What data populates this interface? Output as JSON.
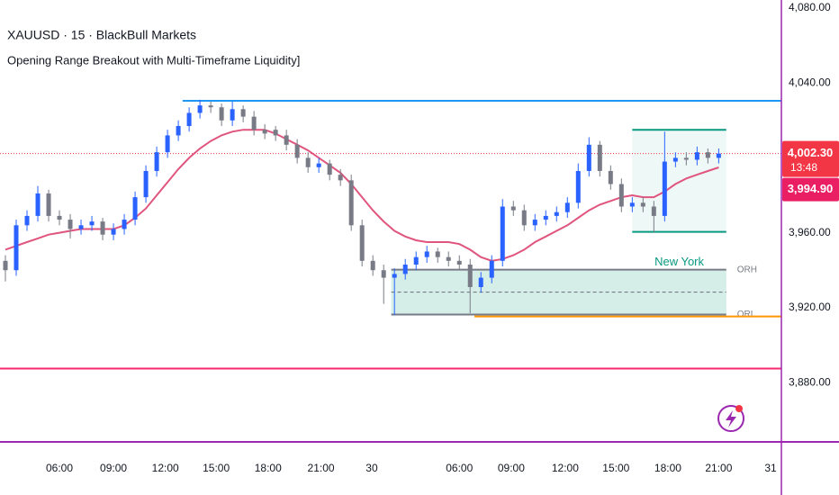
{
  "chart_data": {
    "type": "candlestick",
    "title": "XAUUSD · 15 · BlackBull Markets",
    "subtitle": "Opening Range Breakout with Multi-Timeframe Liquidity]",
    "up_color": "#2962ff",
    "down_color": "#787b86",
    "x": [
      0,
      1,
      2,
      3,
      4,
      5,
      6,
      7,
      8,
      9,
      10,
      11,
      12,
      13,
      14,
      15,
      16,
      17,
      18,
      19,
      20,
      21,
      22,
      23,
      24,
      25,
      26,
      27,
      28,
      29,
      30,
      31,
      32,
      33,
      34,
      35,
      36,
      37,
      38,
      39,
      40,
      41,
      42,
      43,
      44,
      45,
      46,
      47,
      48,
      49,
      50,
      51,
      52,
      53,
      54,
      55,
      56,
      57,
      58,
      59,
      60,
      61,
      62,
      63,
      64,
      65,
      66
    ],
    "open": [
      3945,
      3940,
      3964,
      3969,
      3981,
      3969,
      3967,
      3962,
      3964,
      3966,
      3959,
      3962,
      3967,
      3979,
      3993,
      4003,
      4012,
      4017,
      4024,
      4028,
      4027,
      4020,
      4026,
      4022,
      4015,
      4015,
      4012,
      4007,
      4000,
      3995,
      3997,
      3991,
      3988,
      3964,
      3945,
      3940,
      3936,
      3938,
      3943,
      3947,
      3950,
      3947,
      3945,
      3943,
      3931,
      3936,
      3945,
      3974,
      3972,
      3964,
      3967,
      3969,
      3971,
      3976,
      3993,
      4007,
      3993,
      3986,
      3974,
      3976,
      3974,
      3969,
      3998,
      4000,
      3999,
      4003,
      4000
    ],
    "high": [
      3948,
      3967,
      3972,
      3985,
      3983,
      3972,
      3970,
      3967,
      3969,
      3968,
      3965,
      3970,
      3982,
      3996,
      4006,
      4015,
      4020,
      4027,
      4031,
      4030,
      4029,
      4030,
      4028,
      4025,
      4018,
      4017,
      4015,
      4010,
      4003,
      4000,
      3999,
      3994,
      3991,
      3967,
      3948,
      3943,
      3941,
      3946,
      3950,
      3953,
      3952,
      3950,
      3948,
      3946,
      3939,
      3948,
      3978,
      3977,
      3975,
      3970,
      3972,
      3974,
      3979,
      3997,
      4011,
      4009,
      3996,
      3989,
      3979,
      3979,
      3977,
      4014,
      4003,
      4003,
      4006,
      4005,
      4005
    ],
    "low": [
      3934,
      3937,
      3961,
      3966,
      3966,
      3964,
      3957,
      3959,
      3961,
      3956,
      3956,
      3959,
      3964,
      3976,
      3990,
      4000,
      4009,
      4014,
      4021,
      4024,
      4017,
      4017,
      4019,
      4012,
      4010,
      4009,
      4004,
      3997,
      3992,
      3992,
      3988,
      3985,
      3961,
      3942,
      3937,
      3922,
      3916,
      3935,
      3940,
      3944,
      3944,
      3942,
      3940,
      3917,
      3928,
      3933,
      3942,
      3969,
      3961,
      3961,
      3964,
      3966,
      3968,
      3973,
      3990,
      3990,
      3983,
      3971,
      3971,
      3971,
      3960,
      3966,
      3995,
      3996,
      3996,
      3997,
      3997
    ],
    "close": [
      3940,
      3964,
      3969,
      3981,
      3969,
      3967,
      3962,
      3964,
      3966,
      3959,
      3962,
      3967,
      3979,
      3993,
      4003,
      4012,
      4017,
      4024,
      4028,
      4027,
      4020,
      4026,
      4022,
      4015,
      4013,
      4012,
      4007,
      4000,
      3995,
      3997,
      3991,
      3988,
      3964,
      3945,
      3940,
      3936,
      3938,
      3943,
      3947,
      3950,
      3947,
      3945,
      3943,
      3931,
      3936,
      3945,
      3974,
      3972,
      3964,
      3967,
      3969,
      3971,
      3976,
      3993,
      4007,
      3993,
      3986,
      3974,
      3976,
      3974,
      3969,
      3998,
      4000,
      3999,
      4003,
      4000,
      4002.3
    ],
    "ma": {
      "color": "#e0557e",
      "values": [
        3951,
        3953,
        3955,
        3957,
        3959,
        3960,
        3961,
        3962,
        3962,
        3962,
        3962,
        3964,
        3968,
        3973,
        3980,
        3987,
        3994,
        4000,
        4005,
        4009,
        4012,
        4014,
        4015,
        4015,
        4015,
        4013,
        4010,
        4007,
        4004,
        4000,
        3996,
        3992,
        3986,
        3979,
        3972,
        3966,
        3961,
        3958,
        3956,
        3955,
        3955,
        3955,
        3954,
        3951,
        3947,
        3945,
        3946,
        3948,
        3951,
        3955,
        3958,
        3961,
        3964,
        3968,
        3972,
        3975,
        3977,
        3979,
        3980,
        3979,
        3979,
        3982,
        3986,
        3989,
        3991,
        3993,
        3994.9
      ]
    },
    "xlim": [
      -0.5,
      71.8
    ],
    "xticks": [
      {
        "value": 5,
        "label": "06:00"
      },
      {
        "value": 10,
        "label": "09:00"
      },
      {
        "value": 14.8,
        "label": "12:00"
      },
      {
        "value": 19.5,
        "label": "15:00"
      },
      {
        "value": 24.3,
        "label": "18:00"
      },
      {
        "value": 29.2,
        "label": "21:00"
      },
      {
        "value": 33.9,
        "label": "30"
      },
      {
        "value": 42,
        "label": "06:00"
      },
      {
        "value": 46.8,
        "label": "09:00"
      },
      {
        "value": 51.8,
        "label": "12:00"
      },
      {
        "value": 56.5,
        "label": "15:00"
      },
      {
        "value": 61.3,
        "label": "18:00"
      },
      {
        "value": 66,
        "label": "21:00"
      },
      {
        "value": 70.8,
        "label": "31"
      }
    ],
    "ylim": [
      3848.8,
      4084.3
    ],
    "yticks": [
      {
        "value": 4080,
        "label": "4,080.00"
      },
      {
        "value": 4040,
        "label": "4,040.00"
      },
      {
        "value": 3960,
        "label": "3,960.00"
      },
      {
        "value": 3920,
        "label": "3,920.00"
      },
      {
        "value": 3880,
        "label": "3,880.00"
      }
    ],
    "levels": [
      {
        "value": 4030.5,
        "color": "#2196f3",
        "x_from": 16.4
      },
      {
        "value": 3887.5,
        "color": "#f7296e"
      },
      {
        "value": 3915.3,
        "color": "#ff9800",
        "x_from": 43.4
      }
    ],
    "session_box": {
      "x": [
        58,
        66.7
      ],
      "y": [
        3960.5,
        4015
      ],
      "color": "#089981",
      "label": "New York"
    },
    "orb": {
      "x": [
        35.7,
        66.7
      ],
      "high": {
        "value": 3940.3,
        "label": "ORH"
      },
      "low": {
        "value": 3916.3,
        "label": "ORL"
      },
      "mid": 3928.3,
      "color": "#787b86",
      "fill": "#d5eee8"
    },
    "price_labels": [
      {
        "value": 4002.3,
        "label": "4,002.30",
        "countdown": "13:48",
        "color": "#f23645"
      },
      {
        "value": 3994.9,
        "label": "3,994.90",
        "color": "#e91e63"
      }
    ]
  }
}
